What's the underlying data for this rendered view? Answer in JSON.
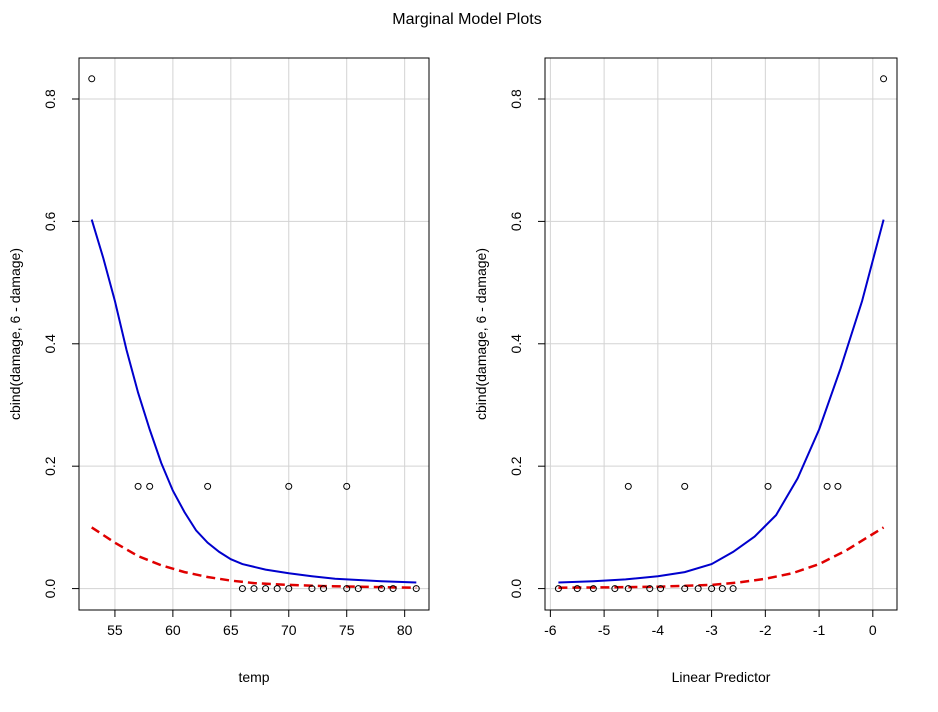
{
  "figure_title": "Marginal Model Plots",
  "colors": {
    "fit": "#0000cd",
    "model": "#e00000",
    "grid": "#d3d3d3",
    "points": "#000000"
  },
  "chart_data": [
    {
      "type": "scatter",
      "xlabel": "temp",
      "ylabel": "cbind(damage, 6 - damage)",
      "xlim": [
        51.9,
        82.1
      ],
      "ylim": [
        -0.035,
        0.867
      ],
      "xticks": [
        55,
        60,
        65,
        70,
        75,
        80
      ],
      "yticks": [
        0.0,
        0.2,
        0.4,
        0.6,
        0.8
      ],
      "grid": true,
      "points": [
        [
          53,
          0.833
        ],
        [
          57,
          0.167
        ],
        [
          58,
          0.167
        ],
        [
          63,
          0.167
        ],
        [
          70,
          0.167
        ],
        [
          75,
          0.167
        ],
        [
          66,
          0
        ],
        [
          67,
          0
        ],
        [
          68,
          0
        ],
        [
          69,
          0
        ],
        [
          70,
          0
        ],
        [
          72,
          0
        ],
        [
          73,
          0
        ],
        [
          75,
          0
        ],
        [
          76,
          0
        ],
        [
          78,
          0
        ],
        [
          79,
          0
        ],
        [
          81,
          0
        ]
      ],
      "series": [
        {
          "style": "solid",
          "x": [
            53,
            54,
            55,
            56,
            57,
            58,
            59,
            60,
            61,
            62,
            63,
            64,
            65,
            66,
            68,
            70,
            72,
            74,
            76,
            78,
            81
          ],
          "y": [
            0.603,
            0.54,
            0.47,
            0.39,
            0.32,
            0.26,
            0.205,
            0.16,
            0.125,
            0.095,
            0.075,
            0.06,
            0.048,
            0.04,
            0.031,
            0.025,
            0.02,
            0.016,
            0.014,
            0.012,
            0.01
          ]
        },
        {
          "style": "dashed",
          "x": [
            53,
            55,
            57,
            59,
            61,
            63,
            65,
            67,
            70,
            73,
            76,
            79,
            81
          ],
          "y": [
            0.1,
            0.075,
            0.053,
            0.038,
            0.027,
            0.019,
            0.013,
            0.009,
            0.006,
            0.004,
            0.003,
            0.002,
            0.0015
          ]
        }
      ]
    },
    {
      "type": "scatter",
      "xlabel": "Linear Predictor",
      "ylabel": "cbind(damage, 6 - damage)",
      "xlim": [
        -6.1,
        0.45
      ],
      "ylim": [
        -0.035,
        0.867
      ],
      "xticks": [
        -6,
        -5,
        -4,
        -3,
        -2,
        -1,
        0
      ],
      "yticks": [
        0.0,
        0.2,
        0.4,
        0.6,
        0.8
      ],
      "grid": true,
      "points": [
        [
          0.2,
          0.833
        ],
        [
          -4.55,
          0.167
        ],
        [
          -3.5,
          0.167
        ],
        [
          -1.95,
          0.167
        ],
        [
          -0.85,
          0.167
        ],
        [
          -0.65,
          0.167
        ],
        [
          -5.85,
          0
        ],
        [
          -5.5,
          0
        ],
        [
          -5.2,
          0
        ],
        [
          -4.8,
          0
        ],
        [
          -4.55,
          0
        ],
        [
          -4.15,
          0
        ],
        [
          -3.95,
          0
        ],
        [
          -3.5,
          0
        ],
        [
          -3.25,
          0
        ],
        [
          -3.0,
          0
        ],
        [
          -2.8,
          0
        ],
        [
          -2.6,
          0
        ]
      ],
      "series": [
        {
          "style": "solid",
          "x": [
            -5.85,
            -5.2,
            -4.6,
            -4.0,
            -3.5,
            -3.0,
            -2.6,
            -2.2,
            -1.8,
            -1.4,
            -1.0,
            -0.6,
            -0.2,
            0.2
          ],
          "y": [
            0.01,
            0.012,
            0.015,
            0.02,
            0.027,
            0.04,
            0.06,
            0.085,
            0.12,
            0.18,
            0.26,
            0.36,
            0.47,
            0.603
          ]
        },
        {
          "style": "dashed",
          "x": [
            -5.85,
            -5.0,
            -4.0,
            -3.0,
            -2.5,
            -2.0,
            -1.5,
            -1.0,
            -0.5,
            0.2
          ],
          "y": [
            0.0015,
            0.002,
            0.003,
            0.006,
            0.01,
            0.016,
            0.025,
            0.04,
            0.062,
            0.1
          ]
        }
      ]
    }
  ]
}
